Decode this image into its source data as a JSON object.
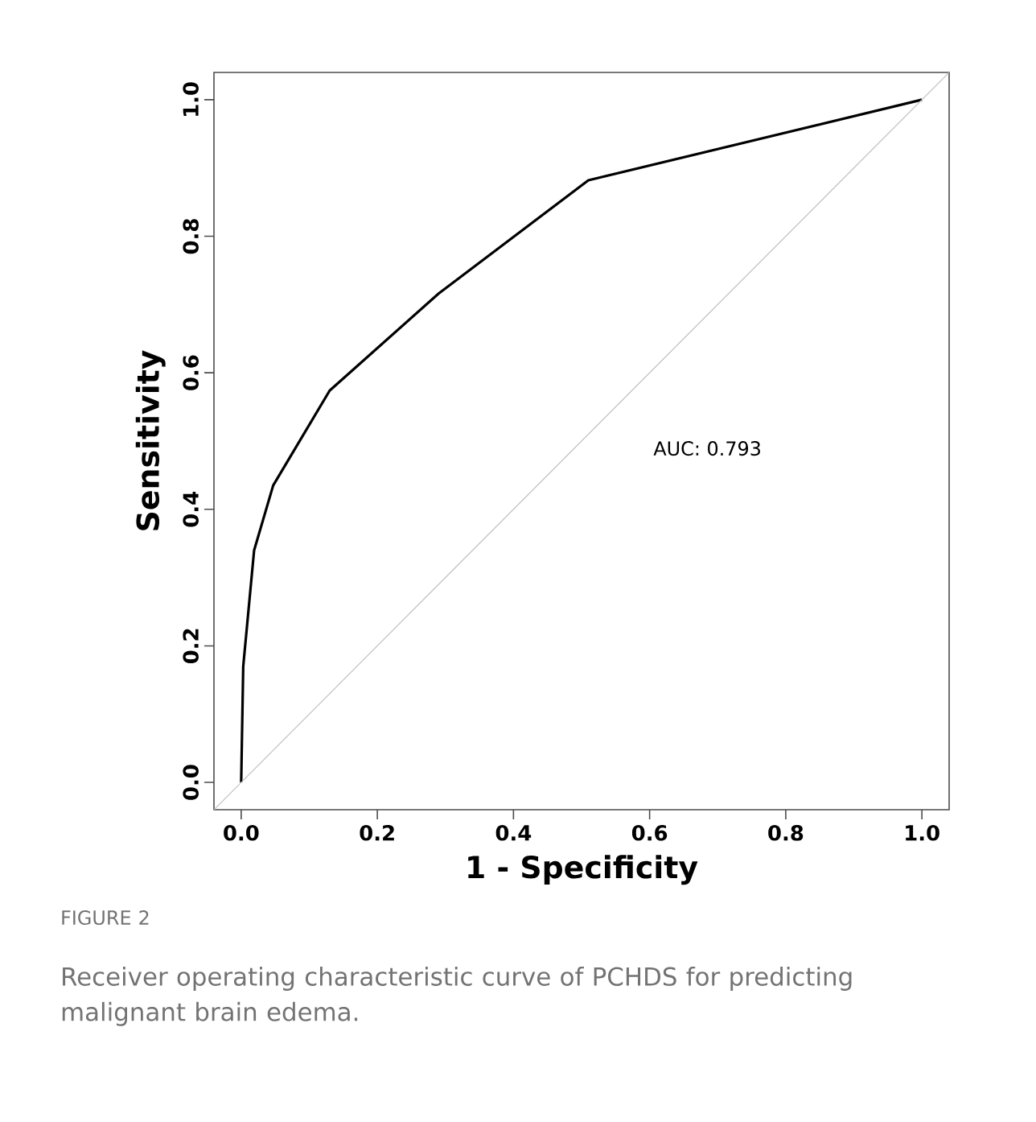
{
  "chart_data": {
    "type": "line",
    "xlabel": "1 - Specificity",
    "ylabel": "Sensitivity",
    "xlim": [
      -0.04,
      1.04
    ],
    "ylim": [
      -0.04,
      1.04
    ],
    "xticks": [
      {
        "value": 0,
        "label": "0.0"
      },
      {
        "value": 0.2,
        "label": "0.2"
      },
      {
        "value": 0.4,
        "label": "0.4"
      },
      {
        "value": 0.6,
        "label": "0.6"
      },
      {
        "value": 0.8,
        "label": "0.8"
      },
      {
        "value": 1,
        "label": "1.0"
      }
    ],
    "yticks": [
      {
        "value": 0,
        "label": "0.0"
      },
      {
        "value": 0.2,
        "label": "0.2"
      },
      {
        "value": 0.4,
        "label": "0.4"
      },
      {
        "value": 0.6,
        "label": "0.6"
      },
      {
        "value": 0.8,
        "label": "0.8"
      },
      {
        "value": 1,
        "label": "1.0"
      }
    ],
    "series": [
      {
        "color": "#000000",
        "x": [
          0,
          0.003,
          0.019,
          0.047,
          0.13,
          0.29,
          0.51,
          1
        ],
        "values": [
          0,
          0.17,
          0.34,
          0.435,
          0.574,
          0.716,
          0.882,
          1
        ]
      },
      {
        "color": "#bebebe",
        "x": [
          -0.04,
          1.04
        ],
        "values": [
          -0.04,
          1.04
        ]
      }
    ],
    "annotations": [
      "AUC: 0.793",
      "FIGURE 2",
      "Receiver operating characteristic curve of PCHDS for predicting malignant brain edema."
    ],
    "grid": false,
    "marker": "none",
    "line_style": "solid"
  }
}
